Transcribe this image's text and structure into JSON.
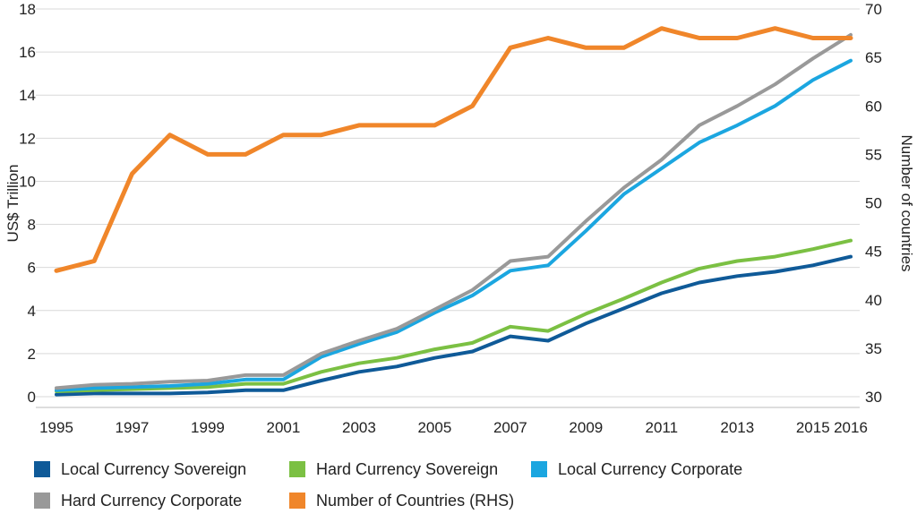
{
  "chart_data": {
    "type": "line",
    "xlabel": "",
    "ylabel_left": "US$ Trillion",
    "ylabel_right": "Number of countries",
    "x": [
      1995,
      1996,
      1997,
      1998,
      1999,
      2000,
      2001,
      2002,
      2003,
      2004,
      2005,
      2006,
      2007,
      2008,
      2009,
      2010,
      2011,
      2012,
      2013,
      2014,
      2015,
      2016
    ],
    "x_tick_labels": [
      "1995",
      "1997",
      "1999",
      "2001",
      "2003",
      "2005",
      "2007",
      "2009",
      "2011",
      "2013",
      "2015",
      "2016"
    ],
    "ylim_left": [
      0,
      18
    ],
    "y_ticks_left": [
      "0",
      "2",
      "4",
      "6",
      "8",
      "10",
      "12",
      "14",
      "16",
      "18"
    ],
    "ylim_right": [
      30,
      70
    ],
    "y_ticks_right": [
      "30",
      "35",
      "40",
      "45",
      "50",
      "55",
      "60",
      "65",
      "70"
    ],
    "grid": "horizontal",
    "legend_position": "bottom",
    "series": [
      {
        "name": "Local Currency Sovereign",
        "axis": "left",
        "color": "#0f5a98",
        "values": [
          0.1,
          0.15,
          0.15,
          0.15,
          0.2,
          0.3,
          0.3,
          0.75,
          1.15,
          1.4,
          1.8,
          2.1,
          2.8,
          2.6,
          3.4,
          4.1,
          4.8,
          5.3,
          5.6,
          5.8,
          6.1,
          6.5
        ]
      },
      {
        "name": "Hard Currency Sovereign",
        "axis": "left",
        "color": "#7bc043",
        "values": [
          0.25,
          0.3,
          0.35,
          0.4,
          0.45,
          0.6,
          0.6,
          1.15,
          1.55,
          1.8,
          2.2,
          2.5,
          3.25,
          3.05,
          3.85,
          4.55,
          5.3,
          5.95,
          6.3,
          6.5,
          6.85,
          7.25
        ]
      },
      {
        "name": "Local Currency Corporate",
        "axis": "left",
        "color": "#1ba6e0",
        "values": [
          0.3,
          0.4,
          0.45,
          0.5,
          0.6,
          0.8,
          0.8,
          1.85,
          2.45,
          3.0,
          3.9,
          4.7,
          5.85,
          6.1,
          7.7,
          9.4,
          10.6,
          11.8,
          12.6,
          13.5,
          14.7,
          15.6
        ]
      },
      {
        "name": "Hard Currency Corporate",
        "axis": "left",
        "color": "#999999",
        "values": [
          0.4,
          0.55,
          0.6,
          0.7,
          0.75,
          1.0,
          1.0,
          2.0,
          2.6,
          3.15,
          4.05,
          4.95,
          6.3,
          6.5,
          8.15,
          9.7,
          11.0,
          12.6,
          13.5,
          14.5,
          15.7,
          16.8
        ]
      },
      {
        "name": "Number of Countries (RHS)",
        "axis": "right",
        "color": "#f0862a",
        "values": [
          43,
          44,
          53,
          57,
          55,
          55,
          57,
          57,
          58,
          58,
          58,
          60,
          66,
          67,
          66,
          66,
          68,
          67,
          67,
          68,
          67,
          67
        ]
      }
    ]
  }
}
